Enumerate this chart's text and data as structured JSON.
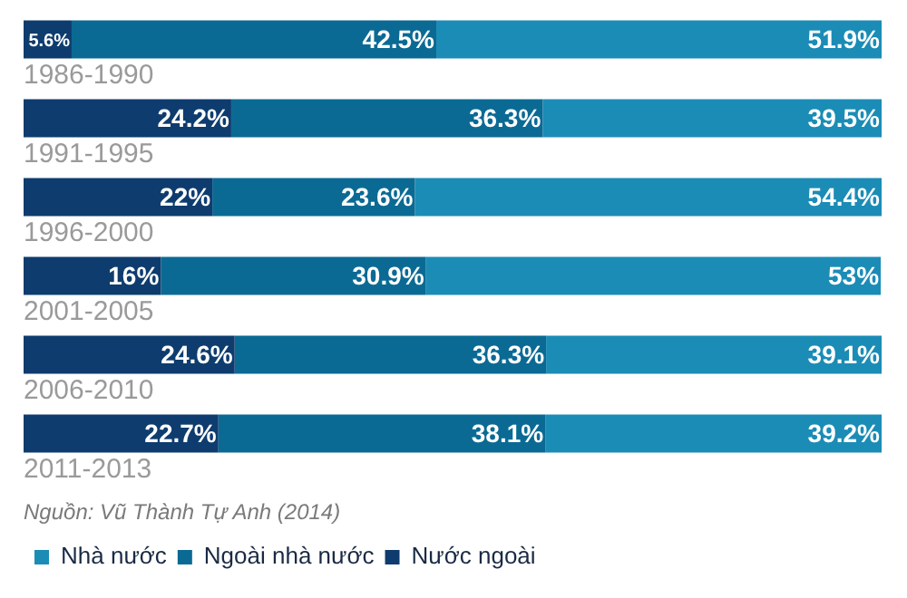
{
  "chart_data": {
    "type": "bar",
    "orientation": "horizontal",
    "stacked": true,
    "categories": [
      "1986-1990",
      "1991-1995",
      "1996-2000",
      "2001-2005",
      "2006-2010",
      "2011-2013"
    ],
    "series": [
      {
        "name": "Nước ngoài",
        "color": "#0e3c6e",
        "values": [
          5.6,
          24.2,
          22,
          16,
          24.6,
          22.7
        ],
        "value_labels": [
          "5.6%",
          "24.2%",
          "22%",
          "16%",
          "24.6%",
          "22.7%"
        ]
      },
      {
        "name": "Ngoài nhà nước",
        "color": "#0b6a94",
        "values": [
          42.5,
          36.3,
          23.6,
          30.9,
          36.3,
          38.1
        ],
        "value_labels": [
          "42.5%",
          "36.3%",
          "23.6%",
          "30.9%",
          "36.3%",
          "38.1%"
        ]
      },
      {
        "name": "Nhà nước",
        "color": "#1b8cb6",
        "values": [
          51.9,
          39.5,
          54.4,
          53,
          39.1,
          39.2
        ],
        "value_labels": [
          "51.9%",
          "39.5%",
          "54.4%",
          "53%",
          "39.1%",
          "39.2%"
        ]
      }
    ],
    "xlim": [
      0,
      100
    ],
    "tick_labels": "y",
    "grid": false,
    "legend": "bottom left",
    "annotations": [
      "Nguồn: Vũ Thành Tự Anh (2014)"
    ]
  }
}
